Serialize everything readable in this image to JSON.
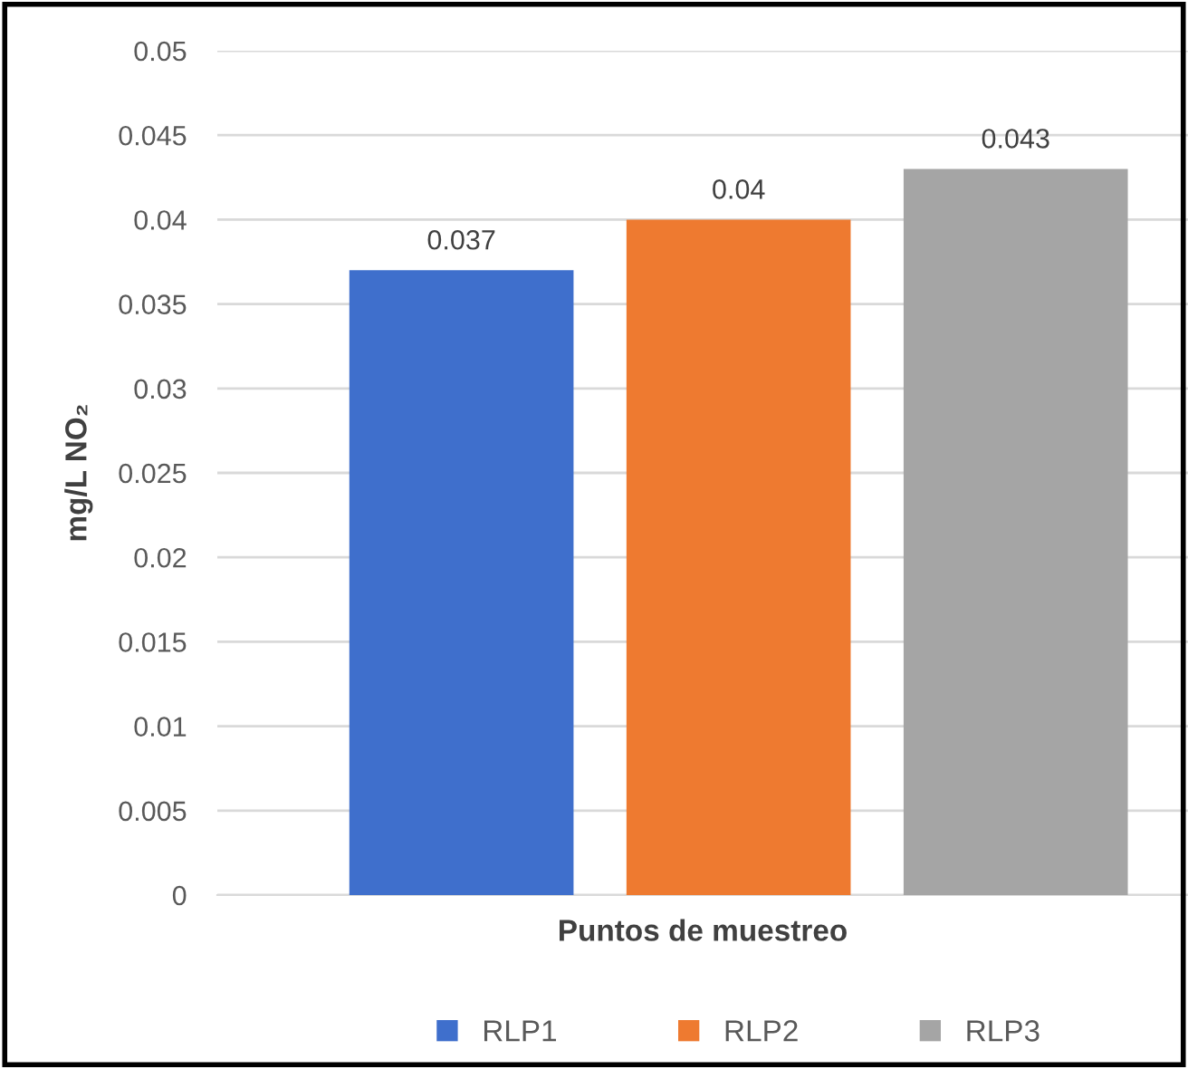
{
  "chart_data": {
    "type": "bar",
    "xlabel": "Puntos de muestreo",
    "ylabel": "mg/L NO₂",
    "categories": [
      null
    ],
    "series": [
      {
        "name": "RLP1",
        "color": "#3f6fcc",
        "values": [
          0.037
        ]
      },
      {
        "name": "RLP2",
        "color": "#ee7a30",
        "values": [
          0.04
        ]
      },
      {
        "name": "RLP3",
        "color": "#a5a5a5",
        "values": [
          0.043
        ]
      }
    ],
    "ylim": [
      0,
      0.05
    ],
    "yticks": [
      0,
      0.005,
      0.01,
      0.015,
      0.02,
      0.025,
      0.03,
      0.035,
      0.04,
      0.045,
      0.05
    ],
    "grid": "y",
    "legend": "bottom",
    "data_labels": true
  }
}
